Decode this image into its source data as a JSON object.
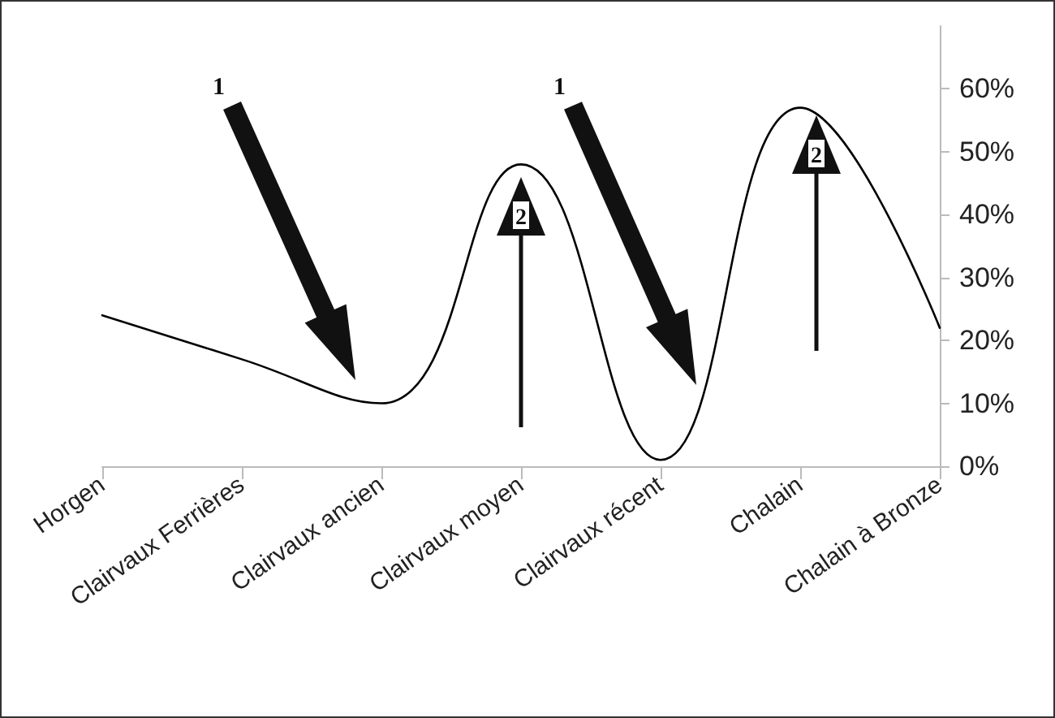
{
  "chart_data": {
    "type": "line",
    "categories": [
      "Horgen",
      "Clairvaux Ferrières",
      "Clairvaux ancien",
      "Clairvaux moyen",
      "Clairvaux récent",
      "Chalain",
      "Chalain à Bronze"
    ],
    "series": [
      {
        "color": "#000000",
        "values": [
          24,
          17,
          10,
          48,
          1,
          57,
          22
        ]
      }
    ],
    "ylim": [
      0,
      70
    ],
    "yticks": [
      {
        "value": 0,
        "label": "0%"
      },
      {
        "value": 10,
        "label": "10%"
      },
      {
        "value": 20,
        "label": "20%"
      },
      {
        "value": 30,
        "label": "30%"
      },
      {
        "value": 40,
        "label": "40%"
      },
      {
        "value": 50,
        "label": "50%"
      },
      {
        "value": 60,
        "label": "60%"
      }
    ],
    "grid": false,
    "marker": "none",
    "line_style": "solid",
    "annotations": [
      "1",
      "1",
      "2",
      "2"
    ]
  }
}
